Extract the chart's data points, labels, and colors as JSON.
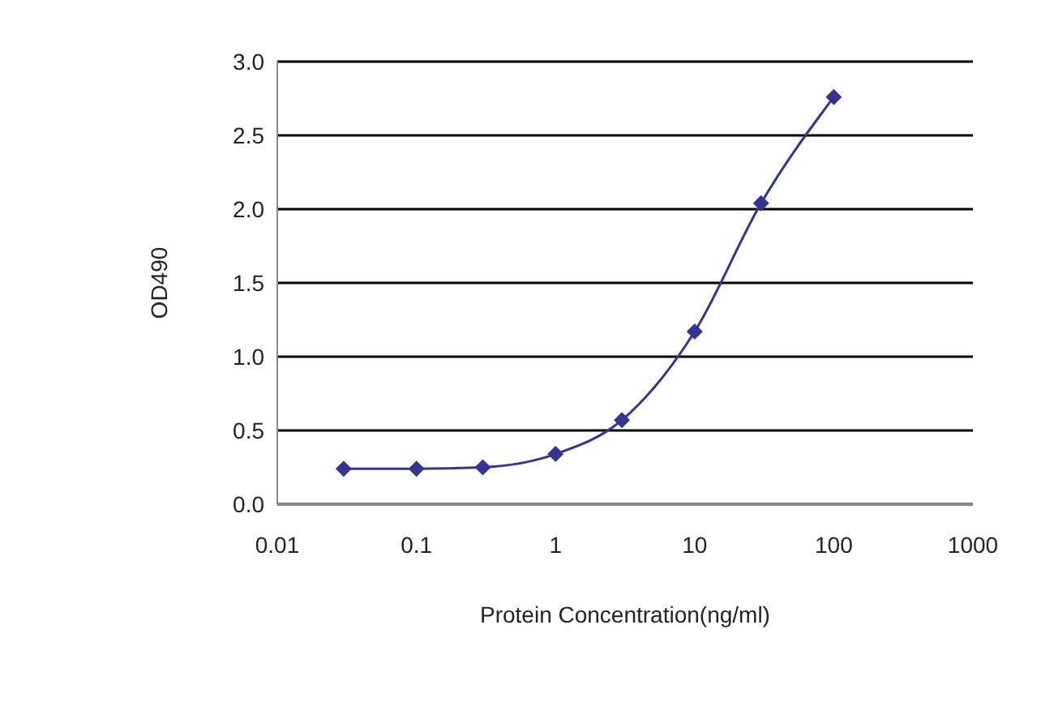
{
  "chart_data": {
    "type": "line",
    "xlabel": "Protein Concentration(ng/ml)",
    "ylabel": "OD490",
    "x": [
      0.03,
      0.1,
      0.3,
      1,
      3,
      10,
      30,
      100
    ],
    "series": [
      {
        "color": "#35358f",
        "values": [
          0.24,
          0.24,
          0.25,
          0.34,
          0.57,
          1.17,
          2.04,
          2.76
        ]
      }
    ],
    "log": "x",
    "xlim": [
      0.01,
      1000
    ],
    "xticks": [
      0.01,
      0.1,
      1,
      10,
      100,
      1000
    ],
    "ylim": [
      0,
      3
    ],
    "yticks": [
      {
        "value": 0,
        "label": "0.0"
      },
      0.5,
      {
        "value": 1,
        "label": "1.0"
      },
      1.5,
      {
        "value": 2,
        "label": "2.0"
      },
      2.5,
      {
        "value": 3,
        "label": "3.0"
      }
    ],
    "grid": "y",
    "marker": "diamond",
    "line_style": "solid",
    "legend": false
  }
}
